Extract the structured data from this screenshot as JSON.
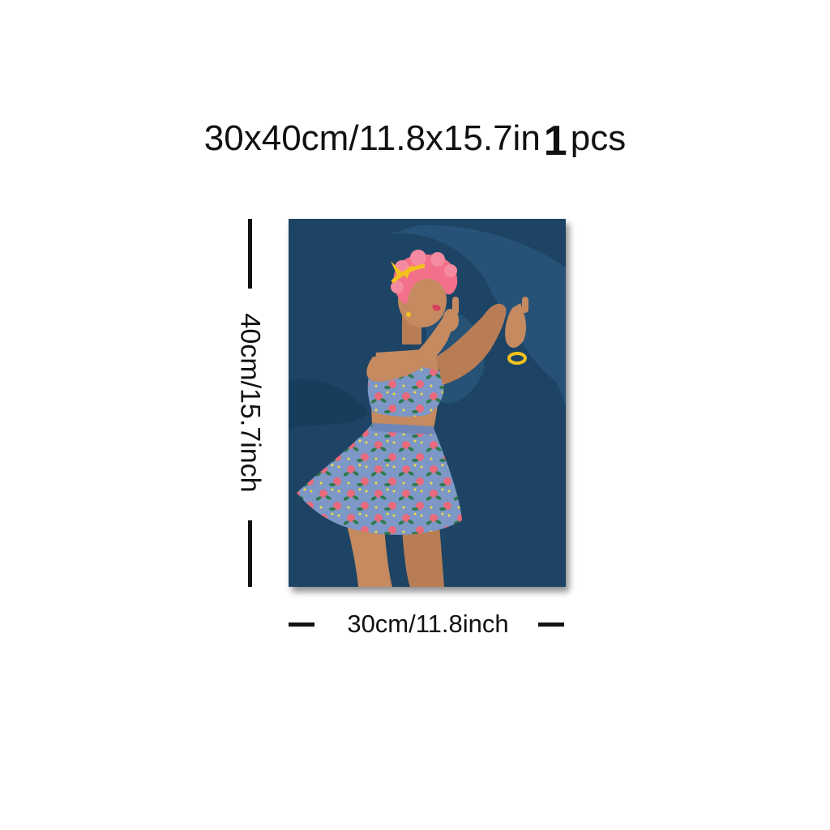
{
  "header": {
    "size_text": "30x40cm/11.8x15.7in",
    "quantity": "1",
    "unit": "pcs"
  },
  "dimensions": {
    "height_label": "40cm/15.7inch",
    "width_label": "30cm/11.8inch"
  },
  "artwork": {
    "subject": "woman in floral top and skirt with pink curly hair",
    "colors": {
      "background": "#1d4464",
      "skin": "#c58a60",
      "hair": "#f2708a",
      "outfit": "#7d97c6",
      "accent": "#f4c21f"
    }
  }
}
